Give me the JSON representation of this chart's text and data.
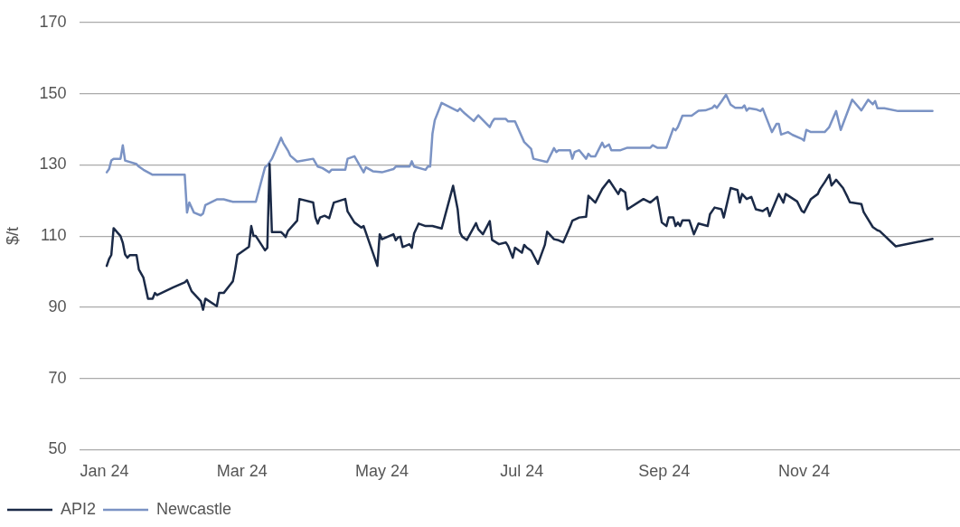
{
  "chart_data": {
    "type": "line",
    "ylabel": "$/t",
    "xlim": [
      "2023-12-21",
      "2025-01-08"
    ],
    "ylim": [
      50,
      170
    ],
    "xticks": [
      {
        "value": "2024-01-01",
        "label": "Jan 24"
      },
      {
        "value": "2024-03-01",
        "label": "Mar 24"
      },
      {
        "value": "2024-05-01",
        "label": "May 24"
      },
      {
        "value": "2024-07-01",
        "label": "Jul 24"
      },
      {
        "value": "2024-09-01",
        "label": "Sep 24"
      },
      {
        "value": "2024-11-01",
        "label": "Nov 24"
      }
    ],
    "yticks": [
      50,
      70,
      90,
      110,
      130,
      150,
      170
    ],
    "grid": "y",
    "legend": "bottom left",
    "marker": "none",
    "line_style": "solid",
    "series": [
      {
        "name": "API2",
        "color": "#1b2a47",
        "x": [
          "2024-01-02",
          "2024-01-03",
          "2024-01-04",
          "2024-01-05",
          "2024-01-08",
          "2024-01-09",
          "2024-01-10",
          "2024-01-11",
          "2024-01-12",
          "2024-01-15",
          "2024-01-16",
          "2024-01-18",
          "2024-01-20",
          "2024-01-22",
          "2024-01-23",
          "2024-01-24",
          "2024-01-31",
          "2024-02-05",
          "2024-02-06",
          "2024-02-08",
          "2024-02-12",
          "2024-02-13",
          "2024-02-14",
          "2024-02-19",
          "2024-02-20",
          "2024-02-22",
          "2024-02-26",
          "2024-02-27",
          "2024-02-28",
          "2024-03-04",
          "2024-03-05",
          "2024-03-06",
          "2024-03-07",
          "2024-03-11",
          "2024-03-12",
          "2024-03-13",
          "2024-03-14",
          "2024-03-18",
          "2024-03-19",
          "2024-03-20",
          "2024-03-21",
          "2024-03-25",
          "2024-03-26",
          "2024-04-01",
          "2024-04-02",
          "2024-04-03",
          "2024-04-04",
          "2024-04-06",
          "2024-04-08",
          "2024-04-10",
          "2024-04-15",
          "2024-04-16",
          "2024-04-19",
          "2024-04-22",
          "2024-04-23",
          "2024-04-29",
          "2024-04-30",
          "2024-05-01",
          "2024-05-06",
          "2024-05-07",
          "2024-05-08",
          "2024-05-09",
          "2024-05-10",
          "2024-05-13",
          "2024-05-14",
          "2024-05-15",
          "2024-05-17",
          "2024-05-20",
          "2024-05-23",
          "2024-05-27",
          "2024-06-01",
          "2024-06-03",
          "2024-06-04",
          "2024-06-05",
          "2024-06-07",
          "2024-06-11",
          "2024-06-12",
          "2024-06-14",
          "2024-06-17",
          "2024-06-18",
          "2024-06-21",
          "2024-06-24",
          "2024-06-25",
          "2024-06-27",
          "2024-06-28",
          "2024-07-01",
          "2024-07-02",
          "2024-07-03",
          "2024-07-05",
          "2024-07-08",
          "2024-07-11",
          "2024-07-12",
          "2024-07-15",
          "2024-07-17",
          "2024-07-19",
          "2024-07-22",
          "2024-07-23",
          "2024-07-26",
          "2024-07-29",
          "2024-07-30",
          "2024-08-02",
          "2024-08-05",
          "2024-08-08",
          "2024-08-12",
          "2024-08-13",
          "2024-08-15",
          "2024-08-16",
          "2024-08-23",
          "2024-08-26",
          "2024-08-29",
          "2024-08-31",
          "2024-09-02",
          "2024-09-03",
          "2024-09-05",
          "2024-09-06",
          "2024-09-07",
          "2024-09-08",
          "2024-09-09",
          "2024-09-12",
          "2024-09-14",
          "2024-09-16",
          "2024-09-20",
          "2024-09-21",
          "2024-09-23",
          "2024-09-26",
          "2024-09-27",
          "2024-09-30",
          "2024-10-03",
          "2024-10-04",
          "2024-10-05",
          "2024-10-07",
          "2024-10-09",
          "2024-10-11",
          "2024-10-14",
          "2024-10-16",
          "2024-10-17",
          "2024-10-21",
          "2024-10-23",
          "2024-10-24",
          "2024-10-29",
          "2024-10-31",
          "2024-11-01",
          "2024-11-04",
          "2024-11-07",
          "2024-11-08",
          "2024-11-10",
          "2024-11-12",
          "2024-11-13",
          "2024-11-15",
          "2024-11-18",
          "2024-11-20",
          "2024-11-21",
          "2024-11-26",
          "2024-11-27",
          "2024-12-01",
          "2024-12-03",
          "2024-12-04",
          "2024-12-11",
          "2024-12-27"
        ],
        "values": [
          101.6,
          103.5,
          104.7,
          112.2,
          110,
          108.1,
          104.8,
          103.9,
          104.6,
          104.6,
          100.6,
          98.3,
          92.4,
          92.4,
          94,
          93.4,
          95.6,
          97,
          97.6,
          94.5,
          91.7,
          89.3,
          92.4,
          90.3,
          94,
          94,
          97.3,
          100.6,
          104.7,
          107,
          112.8,
          110,
          110,
          106,
          106.7,
          130.2,
          111.1,
          111.1,
          110.5,
          109.7,
          111.4,
          114.3,
          120.4,
          119.4,
          115.2,
          113.5,
          115.2,
          115.7,
          115,
          119.4,
          120.4,
          116.9,
          113.8,
          112.4,
          112.8,
          101.6,
          110.5,
          109.1,
          110.5,
          108.8,
          109.6,
          109.8,
          106.9,
          107.7,
          106.7,
          110.7,
          113.5,
          112.8,
          112.8,
          112.1,
          124.1,
          117.5,
          111,
          109.8,
          108.9,
          113.6,
          111.9,
          110.5,
          114.2,
          108.9,
          107.7,
          108.2,
          107.2,
          103.9,
          106.7,
          105.3,
          107.5,
          106.8,
          105.9,
          102.2,
          107.5,
          111.2,
          109.1,
          108.8,
          108.2,
          112.6,
          114.3,
          115.2,
          115.4,
          121.3,
          119.4,
          123.2,
          125.7,
          121.8,
          123.2,
          122.3,
          117.5,
          120.4,
          119.4,
          121,
          113.8,
          112.8,
          115.2,
          115.2,
          112.8,
          113.8,
          112.8,
          114.4,
          114.4,
          110.5,
          113.5,
          112.8,
          116.1,
          118,
          117.5,
          115.2,
          123.5,
          122.9,
          119.4,
          121.8,
          120.4,
          121,
          117.5,
          117,
          117.9,
          115.6,
          121.8,
          119.4,
          121.8,
          119.7,
          117.1,
          116.6,
          120.4,
          121.8,
          123.2,
          125.1,
          127.2,
          124.2,
          125.8,
          123.5,
          120.9,
          119.5,
          119,
          116.7,
          112.5,
          111.6,
          111.4,
          107.1,
          109.2
        ]
      },
      {
        "name": "Newcastle",
        "color": "#7b93c4",
        "x": [
          "2024-01-02",
          "2024-01-03",
          "2024-01-04",
          "2024-01-05",
          "2024-01-08",
          "2024-01-09",
          "2024-01-10",
          "2024-01-15",
          "2024-01-16",
          "2024-01-18",
          "2024-01-20",
          "2024-01-22",
          "2024-02-05",
          "2024-02-06",
          "2024-02-07",
          "2024-02-09",
          "2024-02-12",
          "2024-02-13",
          "2024-02-14",
          "2024-02-19",
          "2024-02-22",
          "2024-02-26",
          "2024-03-07",
          "2024-03-11",
          "2024-03-12",
          "2024-03-14",
          "2024-03-18",
          "2024-03-19",
          "2024-03-21",
          "2024-03-22",
          "2024-03-25",
          "2024-04-01",
          "2024-04-03",
          "2024-04-05",
          "2024-04-08",
          "2024-04-09",
          "2024-04-15",
          "2024-04-16",
          "2024-04-19",
          "2024-04-23",
          "2024-04-24",
          "2024-04-27",
          "2024-05-01",
          "2024-05-06",
          "2024-05-07",
          "2024-05-13",
          "2024-05-14",
          "2024-05-15",
          "2024-05-20",
          "2024-05-21",
          "2024-05-22",
          "2024-05-23",
          "2024-05-24",
          "2024-05-27",
          "2024-06-03",
          "2024-06-04",
          "2024-06-05",
          "2024-06-06",
          "2024-06-10",
          "2024-06-12",
          "2024-06-17",
          "2024-06-18",
          "2024-06-19",
          "2024-06-24",
          "2024-06-25",
          "2024-06-28",
          "2024-07-02",
          "2024-07-05",
          "2024-07-06",
          "2024-07-12",
          "2024-07-15",
          "2024-07-16",
          "2024-07-17",
          "2024-07-22",
          "2024-07-23",
          "2024-07-24",
          "2024-07-26",
          "2024-07-29",
          "2024-07-30",
          "2024-07-31",
          "2024-08-02",
          "2024-08-05",
          "2024-08-06",
          "2024-08-08",
          "2024-08-09",
          "2024-08-13",
          "2024-08-16",
          "2024-08-26",
          "2024-08-27",
          "2024-08-29",
          "2024-09-02",
          "2024-09-05",
          "2024-09-06",
          "2024-09-07",
          "2024-09-09",
          "2024-09-13",
          "2024-09-16",
          "2024-09-19",
          "2024-09-22",
          "2024-09-23",
          "2024-09-24",
          "2024-09-26",
          "2024-09-28",
          "2024-09-30",
          "2024-10-02",
          "2024-10-05",
          "2024-10-06",
          "2024-10-07",
          "2024-10-08",
          "2024-10-11",
          "2024-10-13",
          "2024-10-14",
          "2024-10-18",
          "2024-10-20",
          "2024-10-21",
          "2024-10-22",
          "2024-10-25",
          "2024-10-27",
          "2024-10-31",
          "2024-11-01",
          "2024-11-02",
          "2024-11-04",
          "2024-11-10",
          "2024-11-12",
          "2024-11-15",
          "2024-11-17",
          "2024-11-22",
          "2024-11-26",
          "2024-11-29",
          "2024-12-01",
          "2024-12-02",
          "2024-12-03",
          "2024-12-06",
          "2024-12-12",
          "2024-12-27"
        ],
        "values": [
          127.9,
          128.8,
          131.2,
          131.7,
          131.7,
          135.5,
          131.2,
          130.2,
          129.5,
          128.6,
          127.9,
          127.2,
          127.2,
          116.6,
          119.4,
          116.6,
          115.8,
          116.3,
          118.7,
          120.3,
          120.3,
          119.6,
          119.6,
          129.3,
          129.8,
          131.7,
          137.6,
          136.1,
          134,
          132.6,
          130.9,
          131.7,
          129.5,
          129.1,
          127.9,
          128.6,
          128.6,
          131.7,
          132.4,
          127.9,
          129.3,
          128.2,
          127.9,
          128.8,
          129.5,
          129.5,
          131,
          129.5,
          128.6,
          129.5,
          129.5,
          138.7,
          142.5,
          147.4,
          145.1,
          145.8,
          145.1,
          144.5,
          142.3,
          143.9,
          140.6,
          142,
          142.9,
          142.9,
          142.2,
          142.2,
          136.4,
          134.5,
          131.7,
          130.8,
          134.7,
          133.6,
          134.1,
          134.1,
          131.7,
          133.6,
          134.1,
          131.7,
          133.1,
          132.4,
          132.4,
          136.2,
          134.9,
          135.7,
          134.1,
          134.1,
          134.8,
          134.8,
          135.5,
          134.8,
          134.8,
          140.2,
          139.7,
          140.6,
          143.8,
          143.8,
          145.2,
          145.3,
          146,
          146.7,
          146,
          147.8,
          149.7,
          146.9,
          146,
          146,
          146.7,
          145.2,
          145.9,
          145.6,
          145.1,
          145.8,
          139.2,
          141.5,
          141.5,
          138.5,
          139.2,
          138.4,
          137.3,
          136.8,
          139.8,
          139.2,
          139.2,
          140.6,
          145.1,
          139.8,
          148.3,
          145.3,
          148.3,
          147,
          147.9,
          145.9,
          145.9,
          145.1,
          145.1
        ]
      }
    ]
  }
}
